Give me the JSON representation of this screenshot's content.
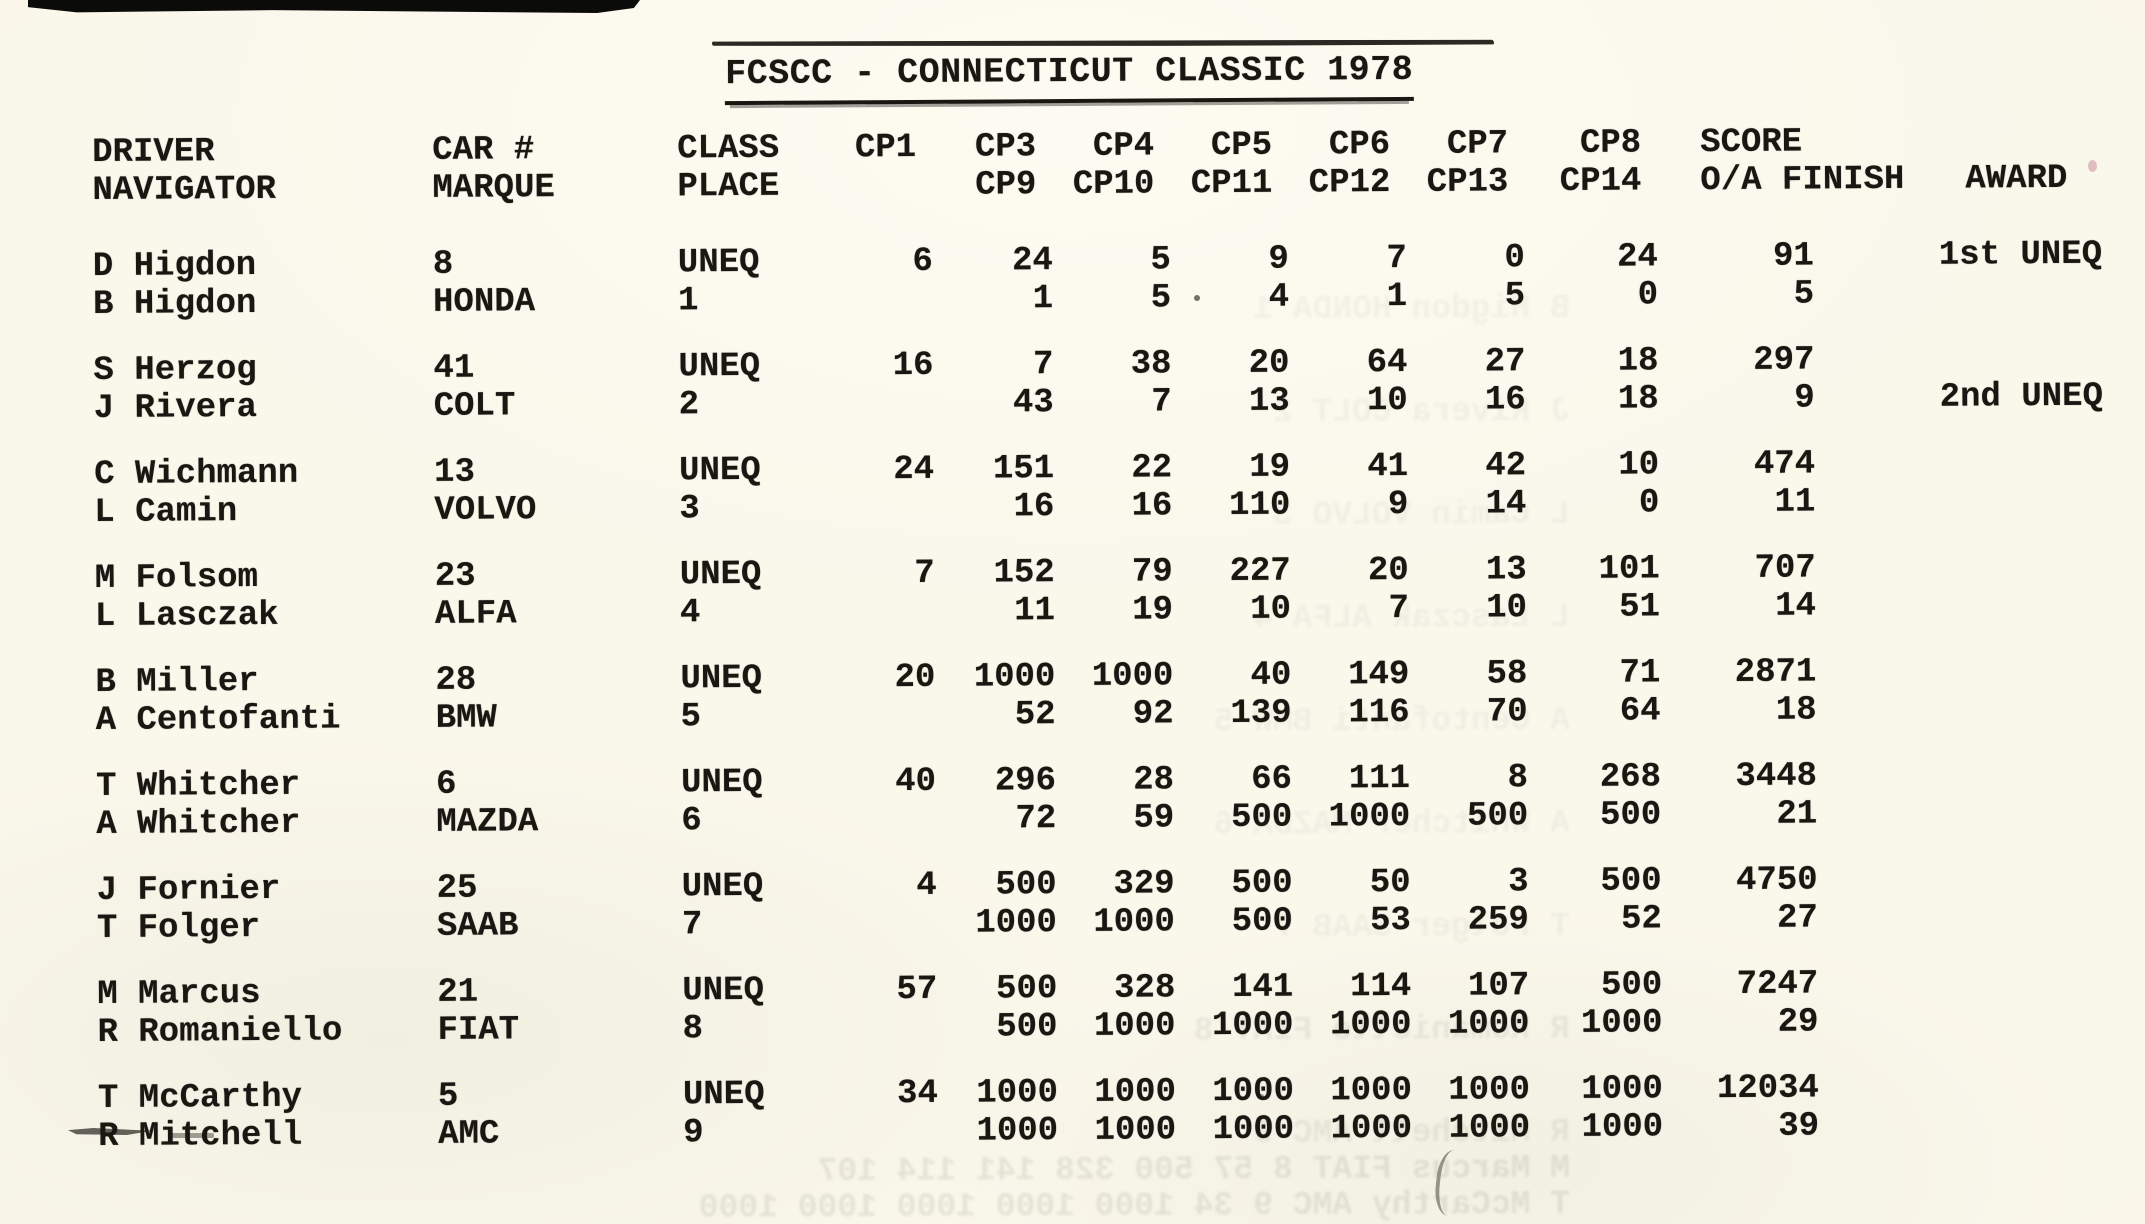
{
  "document": {
    "title": "FCSCC - CONNECTICUT CLASSIC 1978"
  },
  "table": {
    "headers": {
      "driver": "DRIVER",
      "navigator": "NAVIGATOR",
      "car_num": "CAR #",
      "marque": "MARQUE",
      "class": "CLASS",
      "place": "PLACE",
      "cp_top": [
        "CP1",
        "CP3",
        "CP4",
        "CP5",
        "CP6",
        "CP7",
        "CP8"
      ],
      "cp_bot": [
        "",
        "CP9",
        "CP10",
        "CP11",
        "CP12",
        "CP13",
        "CP14"
      ],
      "score": "SCORE",
      "oa_finish": "O/A FINISH",
      "award": "AWARD"
    },
    "rows": [
      {
        "driver": "D Higdon",
        "navigator": "B Higdon",
        "car_num": "8",
        "marque": "HONDA",
        "class": "UNEQ",
        "place": "1",
        "num_top": [
          "6",
          "24",
          "5",
          "9",
          "7",
          "0",
          "24",
          "91"
        ],
        "num_bot": [
          "",
          "1",
          "5",
          "4",
          "1",
          "5",
          "0",
          "5"
        ],
        "award_top": "1st UNEQ",
        "award_bot": ""
      },
      {
        "driver": "S Herzog",
        "navigator": "J Rivera",
        "car_num": "41",
        "marque": "COLT",
        "class": "UNEQ",
        "place": "2",
        "num_top": [
          "16",
          "7",
          "38",
          "20",
          "64",
          "27",
          "18",
          "297"
        ],
        "num_bot": [
          "",
          "43",
          "7",
          "13",
          "10",
          "16",
          "18",
          "9"
        ],
        "award_top": "",
        "award_bot": "2nd UNEQ"
      },
      {
        "driver": "C Wichmann",
        "navigator": "L Camin",
        "car_num": "13",
        "marque": "VOLVO",
        "class": "UNEQ",
        "place": "3",
        "num_top": [
          "24",
          "151",
          "22",
          "19",
          "41",
          "42",
          "10",
          "474"
        ],
        "num_bot": [
          "",
          "16",
          "16",
          "110",
          "9",
          "14",
          "0",
          "11"
        ],
        "award_top": "",
        "award_bot": ""
      },
      {
        "driver": "M Folsom",
        "navigator": "L Lasczak",
        "car_num": "23",
        "marque": "ALFA",
        "class": "UNEQ",
        "place": "4",
        "num_top": [
          "7",
          "152",
          "79",
          "227",
          "20",
          "13",
          "101",
          "707"
        ],
        "num_bot": [
          "",
          "11",
          "19",
          "10",
          "7",
          "10",
          "51",
          "14"
        ],
        "award_top": "",
        "award_bot": ""
      },
      {
        "driver": "B Miller",
        "navigator": "A Centofanti",
        "car_num": "28",
        "marque": "BMW",
        "class": "UNEQ",
        "place": "5",
        "num_top": [
          "20",
          "1000",
          "1000",
          "40",
          "149",
          "58",
          "71",
          "2871"
        ],
        "num_bot": [
          "",
          "52",
          "92",
          "139",
          "116",
          "70",
          "64",
          "18"
        ],
        "award_top": "",
        "award_bot": ""
      },
      {
        "driver": "T Whitcher",
        "navigator": "A Whitcher",
        "car_num": "6",
        "marque": "MAZDA",
        "class": "UNEQ",
        "place": "6",
        "num_top": [
          "40",
          "296",
          "28",
          "66",
          "111",
          "8",
          "268",
          "3448"
        ],
        "num_bot": [
          "",
          "72",
          "59",
          "500",
          "1000",
          "500",
          "500",
          "21"
        ],
        "award_top": "",
        "award_bot": ""
      },
      {
        "driver": "J Fornier",
        "navigator": "T Folger",
        "car_num": "25",
        "marque": "SAAB",
        "class": "UNEQ",
        "place": "7",
        "num_top": [
          "4",
          "500",
          "329",
          "500",
          "50",
          "3",
          "500",
          "4750"
        ],
        "num_bot": [
          "",
          "1000",
          "1000",
          "500",
          "53",
          "259",
          "52",
          "27"
        ],
        "award_top": "",
        "award_bot": ""
      },
      {
        "driver": "M Marcus",
        "navigator": "R Romaniello",
        "car_num": "21",
        "marque": "FIAT",
        "class": "UNEQ",
        "place": "8",
        "num_top": [
          "57",
          "500",
          "328",
          "141",
          "114",
          "107",
          "500",
          "7247"
        ],
        "num_bot": [
          "",
          "500",
          "1000",
          "1000",
          "1000",
          "1000",
          "1000",
          "29"
        ],
        "award_top": "",
        "award_bot": ""
      },
      {
        "driver": "T McCarthy",
        "navigator": "R Mitchell",
        "car_num": "5",
        "marque": "AMC",
        "class": "UNEQ",
        "place": "9",
        "num_top": [
          "34",
          "1000",
          "1000",
          "1000",
          "1000",
          "1000",
          "1000",
          "12034"
        ],
        "num_bot": [
          "",
          "1000",
          "1000",
          "1000",
          "1000",
          "1000",
          "1000",
          "39"
        ],
        "award_top": "",
        "award_bot": ""
      }
    ]
  }
}
